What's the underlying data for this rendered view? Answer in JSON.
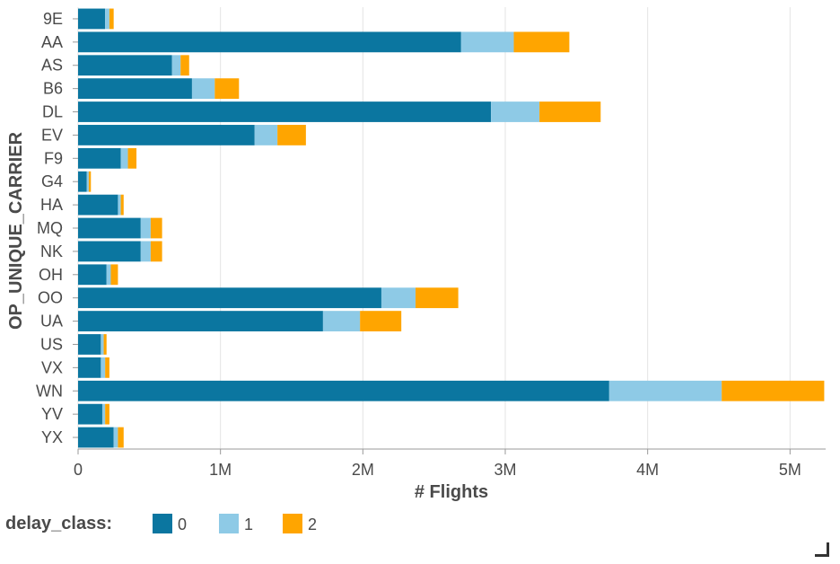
{
  "chart_data": {
    "type": "bar",
    "orientation": "horizontal",
    "stacked": true,
    "categories": [
      "9E",
      "AA",
      "AS",
      "B6",
      "DL",
      "EV",
      "F9",
      "G4",
      "HA",
      "MQ",
      "NK",
      "OH",
      "OO",
      "UA",
      "US",
      "VX",
      "WN",
      "YV",
      "YX"
    ],
    "series": [
      {
        "name": "0",
        "color": "#0b76a0",
        "values": [
          190000,
          2690000,
          660000,
          800000,
          2900000,
          1240000,
          300000,
          60000,
          280000,
          440000,
          440000,
          200000,
          2130000,
          1720000,
          160000,
          160000,
          3730000,
          170000,
          250000
        ]
      },
      {
        "name": "1",
        "color": "#8ecae6",
        "values": [
          30000,
          370000,
          60000,
          160000,
          340000,
          160000,
          50000,
          15000,
          20000,
          70000,
          70000,
          30000,
          240000,
          260000,
          20000,
          30000,
          790000,
          20000,
          30000
        ]
      },
      {
        "name": "2",
        "color": "#ffa500",
        "values": [
          30000,
          390000,
          60000,
          170000,
          430000,
          200000,
          60000,
          15000,
          20000,
          80000,
          80000,
          50000,
          300000,
          290000,
          20000,
          30000,
          720000,
          30000,
          40000
        ]
      }
    ],
    "xlabel": "# Flights",
    "ylabel": "OP_UNIQUE_CARRIER",
    "xlim": [
      0,
      5250000
    ],
    "x_ticks": [
      {
        "value": 0,
        "label": "0"
      },
      {
        "value": 1000000,
        "label": "1M"
      },
      {
        "value": 2000000,
        "label": "2M"
      },
      {
        "value": 3000000,
        "label": "3M"
      },
      {
        "value": 4000000,
        "label": "4M"
      },
      {
        "value": 5000000,
        "label": "5M"
      }
    ],
    "grid": true,
    "legend": {
      "title": "delay_class:",
      "position": "bottom-left",
      "entries": [
        "0",
        "1",
        "2"
      ]
    }
  }
}
